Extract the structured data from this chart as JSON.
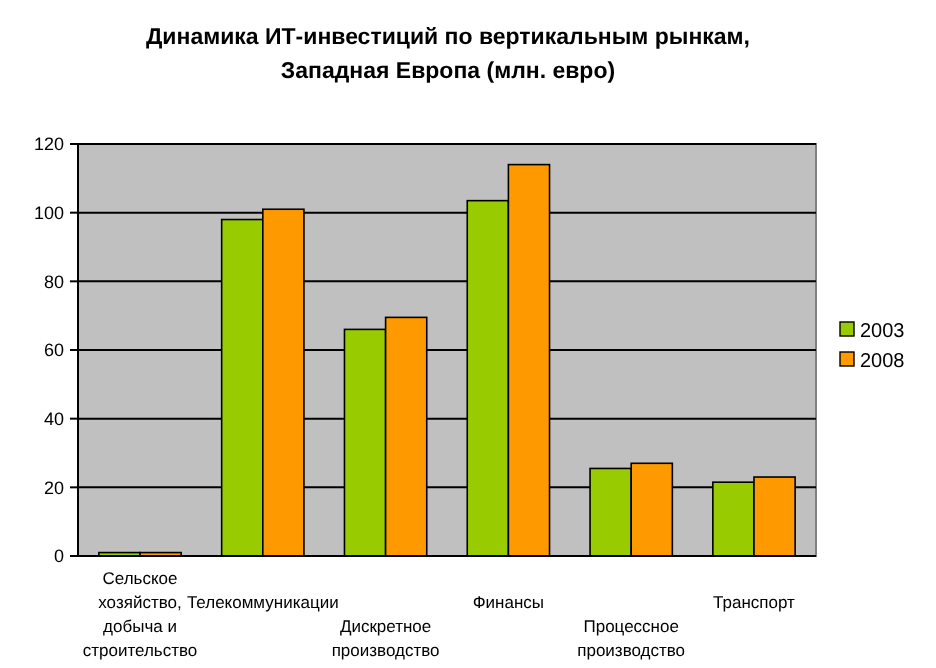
{
  "chart_data": {
    "type": "bar",
    "title": "Динамика ИТ-инвестиций по вертикальным рынкам, Западная Европа (млн. евро)",
    "categories": [
      "Сельское хозяйство, добыча и строительство",
      "Телекоммуникации",
      "Дискретное производство",
      "Финансы",
      "Процессное производство",
      "Транспорт"
    ],
    "series": [
      {
        "name": "2003",
        "color": "#99cc00",
        "values": [
          1,
          98,
          66,
          103.5,
          25.5,
          21.5
        ]
      },
      {
        "name": "2008",
        "color": "#ff9900",
        "values": [
          1,
          101,
          69.5,
          114,
          27,
          23
        ]
      }
    ],
    "ylim": [
      0,
      120
    ],
    "yticks": [
      0,
      20,
      40,
      60,
      80,
      100,
      120
    ],
    "grid": "y",
    "legend": "right"
  }
}
